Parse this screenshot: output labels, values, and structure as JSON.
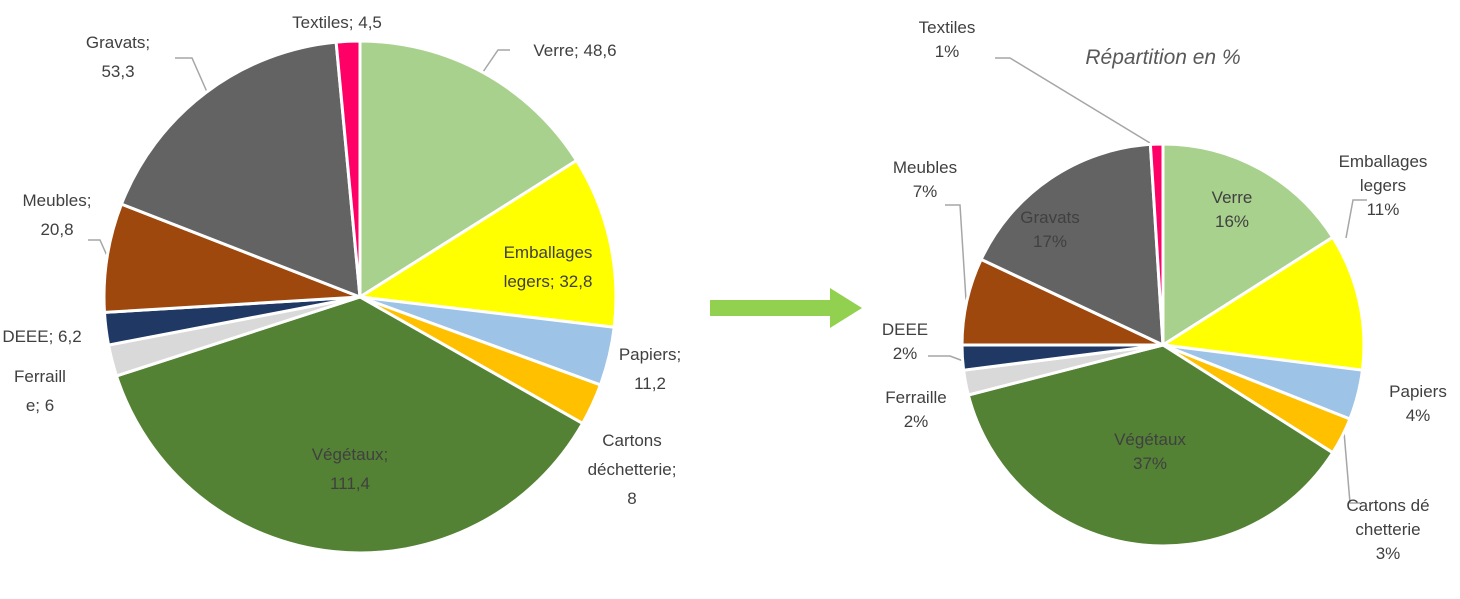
{
  "chart_data": [
    {
      "type": "pie",
      "labels": [
        "Verre; 48,6",
        "Emballages legers; 32,8",
        "Papiers; 11,2",
        "Cartons déchetterie; 8",
        "Végétaux; 111,4",
        "Ferraille; 6",
        "DEEE; 6,2",
        "Meubles; 20,8",
        "Gravats; 53,3",
        "Textiles; 4,5"
      ],
      "values": [
        48.6,
        32.8,
        11.2,
        8,
        111.4,
        6,
        6.2,
        20.8,
        53.3,
        4.5
      ],
      "colors": [
        "#a9d18e",
        "#ffff00",
        "#9dc3e6",
        "#ffc000",
        "#548235",
        "#d9d9d9",
        "#203864",
        "#9e480e",
        "#636363",
        "#ff0066"
      ]
    },
    {
      "type": "pie",
      "title": "Répartition en %",
      "categories": [
        "Verre",
        "Emballages legers",
        "Papiers",
        "Cartons déchetterie",
        "Végétaux",
        "Ferraille",
        "DEEE",
        "Meubles",
        "Gravats",
        "Textiles"
      ],
      "values": [
        16,
        11,
        4,
        3,
        37,
        2,
        2,
        7,
        17,
        1
      ],
      "value_labels": [
        "16%",
        "11%",
        "4%",
        "3%",
        "37%",
        "2%",
        "2%",
        "7%",
        "17%",
        "1%"
      ],
      "colors": [
        "#a9d18e",
        "#ffff00",
        "#9dc3e6",
        "#ffc000",
        "#548235",
        "#d9d9d9",
        "#203864",
        "#9e480e",
        "#636363",
        "#ff0066"
      ]
    }
  ]
}
